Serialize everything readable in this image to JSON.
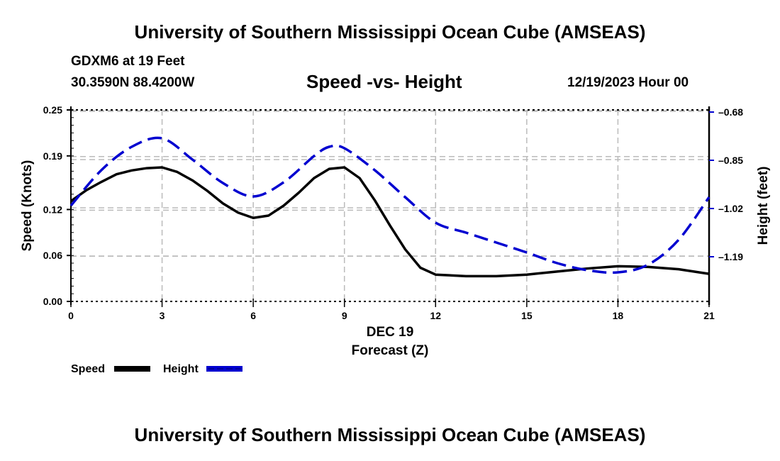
{
  "header": {
    "title": "University of Southern Mississippi Ocean Cube (AMSEAS)",
    "station": "GDXM6 at 19 Feet",
    "coordinates": "30.3590N  88.4200W",
    "chart_title": "Speed -vs- Height",
    "datetime": "12/19/2023 Hour 00"
  },
  "footer": {
    "title": "University of Southern Mississippi Ocean Cube (AMSEAS)"
  },
  "chart_data": {
    "type": "line",
    "title": "Speed -vs- Height",
    "xlabel": "Forecast (Z)",
    "xdate_label": "DEC 19",
    "ylabel": "Speed (Knots)",
    "y2label": "Height (feet)",
    "xlim": [
      0,
      21
    ],
    "ylim": [
      0,
      0.25
    ],
    "y2lim": [
      -1.3475,
      -0.6725
    ],
    "x_ticks": [
      0,
      3,
      6,
      9,
      12,
      15,
      18,
      21
    ],
    "x_tick_labels": [
      "0",
      "3",
      "6",
      "9",
      "12",
      "15",
      "18",
      "21"
    ],
    "y_ticks": [
      0.0,
      0.06,
      0.12,
      0.19,
      0.25
    ],
    "y_tick_labels": [
      "0.00",
      "0.06",
      "0.12",
      "0.19",
      "0.25"
    ],
    "y2_ticks": [
      -0.68,
      -0.85,
      -1.02,
      -1.19
    ],
    "y2_tick_labels": [
      "-0.68",
      "-0.85",
      "-1.02",
      "-1.19"
    ],
    "grid": true,
    "legend_position": "bottom-left",
    "series": [
      {
        "name": "Speed",
        "axis": "left",
        "color": "#000000",
        "style": "solid",
        "x": [
          0,
          0.5,
          1,
          1.5,
          2,
          2.5,
          3,
          3.5,
          4,
          4.5,
          5,
          5.5,
          6,
          6.5,
          7,
          7.5,
          8,
          8.5,
          9,
          9.5,
          10,
          10.5,
          11,
          11.5,
          12,
          13,
          14,
          15,
          16,
          17,
          18,
          19,
          20,
          21
        ],
        "values": [
          0.131,
          0.145,
          0.156,
          0.166,
          0.171,
          0.174,
          0.175,
          0.169,
          0.158,
          0.144,
          0.128,
          0.116,
          0.109,
          0.112,
          0.125,
          0.142,
          0.161,
          0.173,
          0.175,
          0.161,
          0.132,
          0.099,
          0.068,
          0.044,
          0.035,
          0.033,
          0.033,
          0.035,
          0.039,
          0.043,
          0.046,
          0.045,
          0.042,
          0.036
        ]
      },
      {
        "name": "Height",
        "axis": "right",
        "color": "#0000d0",
        "style": "dashed",
        "x": [
          0,
          1,
          2,
          3,
          4,
          5,
          6,
          7,
          8,
          8.5,
          9,
          10,
          11,
          12,
          13,
          14,
          15,
          16,
          17,
          18,
          19,
          20,
          21
        ],
        "values": [
          -1.01,
          -0.885,
          -0.8025,
          -0.7725,
          -0.8475,
          -0.93,
          -0.9775,
          -0.9275,
          -0.835,
          -0.8025,
          -0.8075,
          -0.885,
          -0.98,
          -1.07,
          -1.105,
          -1.14,
          -1.175,
          -1.2125,
          -1.2375,
          -1.245,
          -1.2175,
          -1.13,
          -0.98
        ]
      }
    ]
  }
}
